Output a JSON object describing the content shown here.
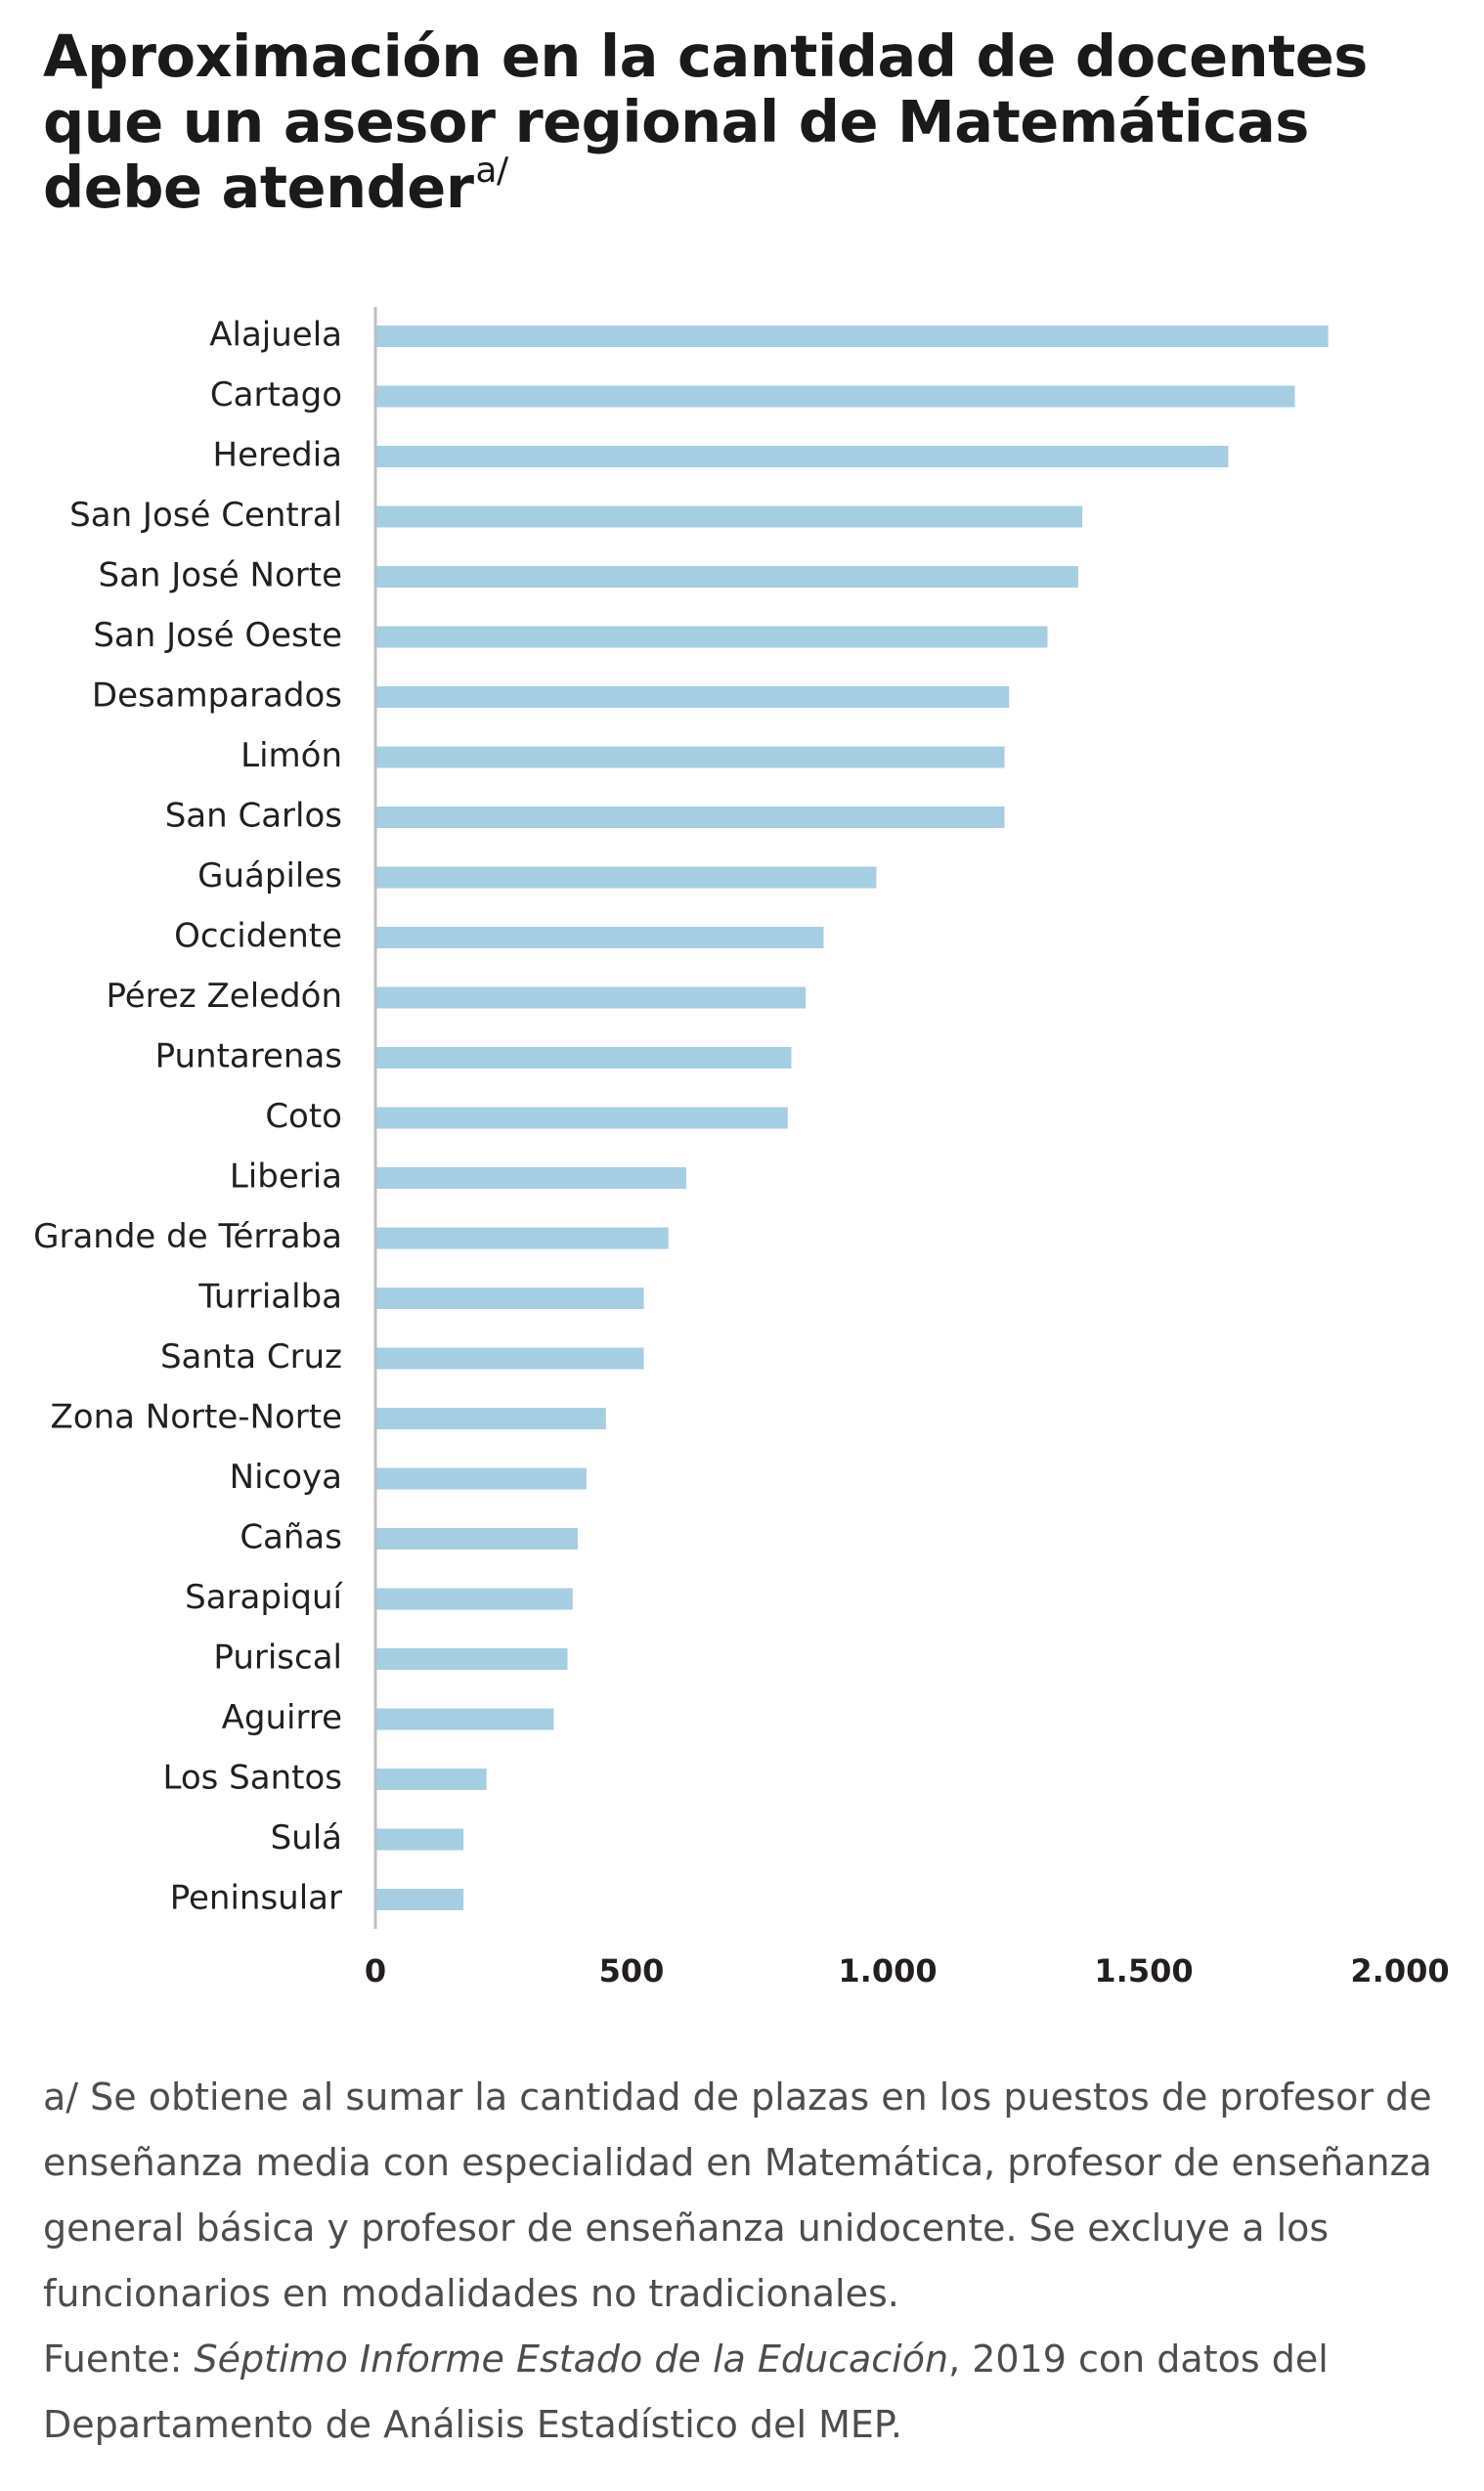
{
  "title": {
    "text": "Aproximación en la cantidad de docentes que un asesor regional de Matemáticas debe atender",
    "marker": "a/"
  },
  "chart_data": {
    "type": "bar",
    "orientation": "horizontal",
    "categories": [
      "Alajuela",
      "Cartago",
      "Heredia",
      "San José Central",
      "San José Norte",
      "San José Oeste",
      "Desamparados",
      "Limón",
      "San Carlos",
      "Guápiles",
      "Occidente",
      "Pérez Zeledón",
      "Puntarenas",
      "Coto",
      "Liberia",
      "Grande de Térraba",
      "Turrialba",
      "Santa Cruz",
      "Zona Norte-Norte",
      "Nicoya",
      "Cañas",
      "Sarapiquí",
      "Puriscal",
      "Aguirre",
      "Los Santos",
      "Sulá",
      "Peninsular"
    ],
    "values": [
      1860,
      1795,
      1665,
      1380,
      1372,
      1312,
      1237,
      1228,
      1228,
      978,
      875,
      840,
      812,
      805,
      607,
      572,
      524,
      524,
      450,
      412,
      395,
      385,
      375,
      348,
      217,
      172,
      172
    ],
    "xlim": [
      0,
      2000
    ],
    "xticks": [
      0,
      500,
      1000,
      1500,
      2000
    ],
    "xtick_labels": [
      "0",
      "500",
      "1.000",
      "1.500",
      "2.000"
    ],
    "grid": false,
    "colors": {
      "bar": "#a6cee3",
      "axis": "#bfbfbf",
      "text": "#231f20"
    }
  },
  "notes": {
    "footnote": "a/ Se obtiene al sumar la cantidad de plazas en los puestos de profesor de enseñanza media con especialidad en Matemática, profesor de enseñanza general básica y profesor de enseñanza unidocente. Se excluye a los funcionarios en modalidades no tradicionales.",
    "source_prefix": "Fuente: ",
    "source_title": "Séptimo Informe Estado de la Educación",
    "source_suffix": ", 2019 con datos del Departamento de Análisis Estadístico del MEP."
  }
}
